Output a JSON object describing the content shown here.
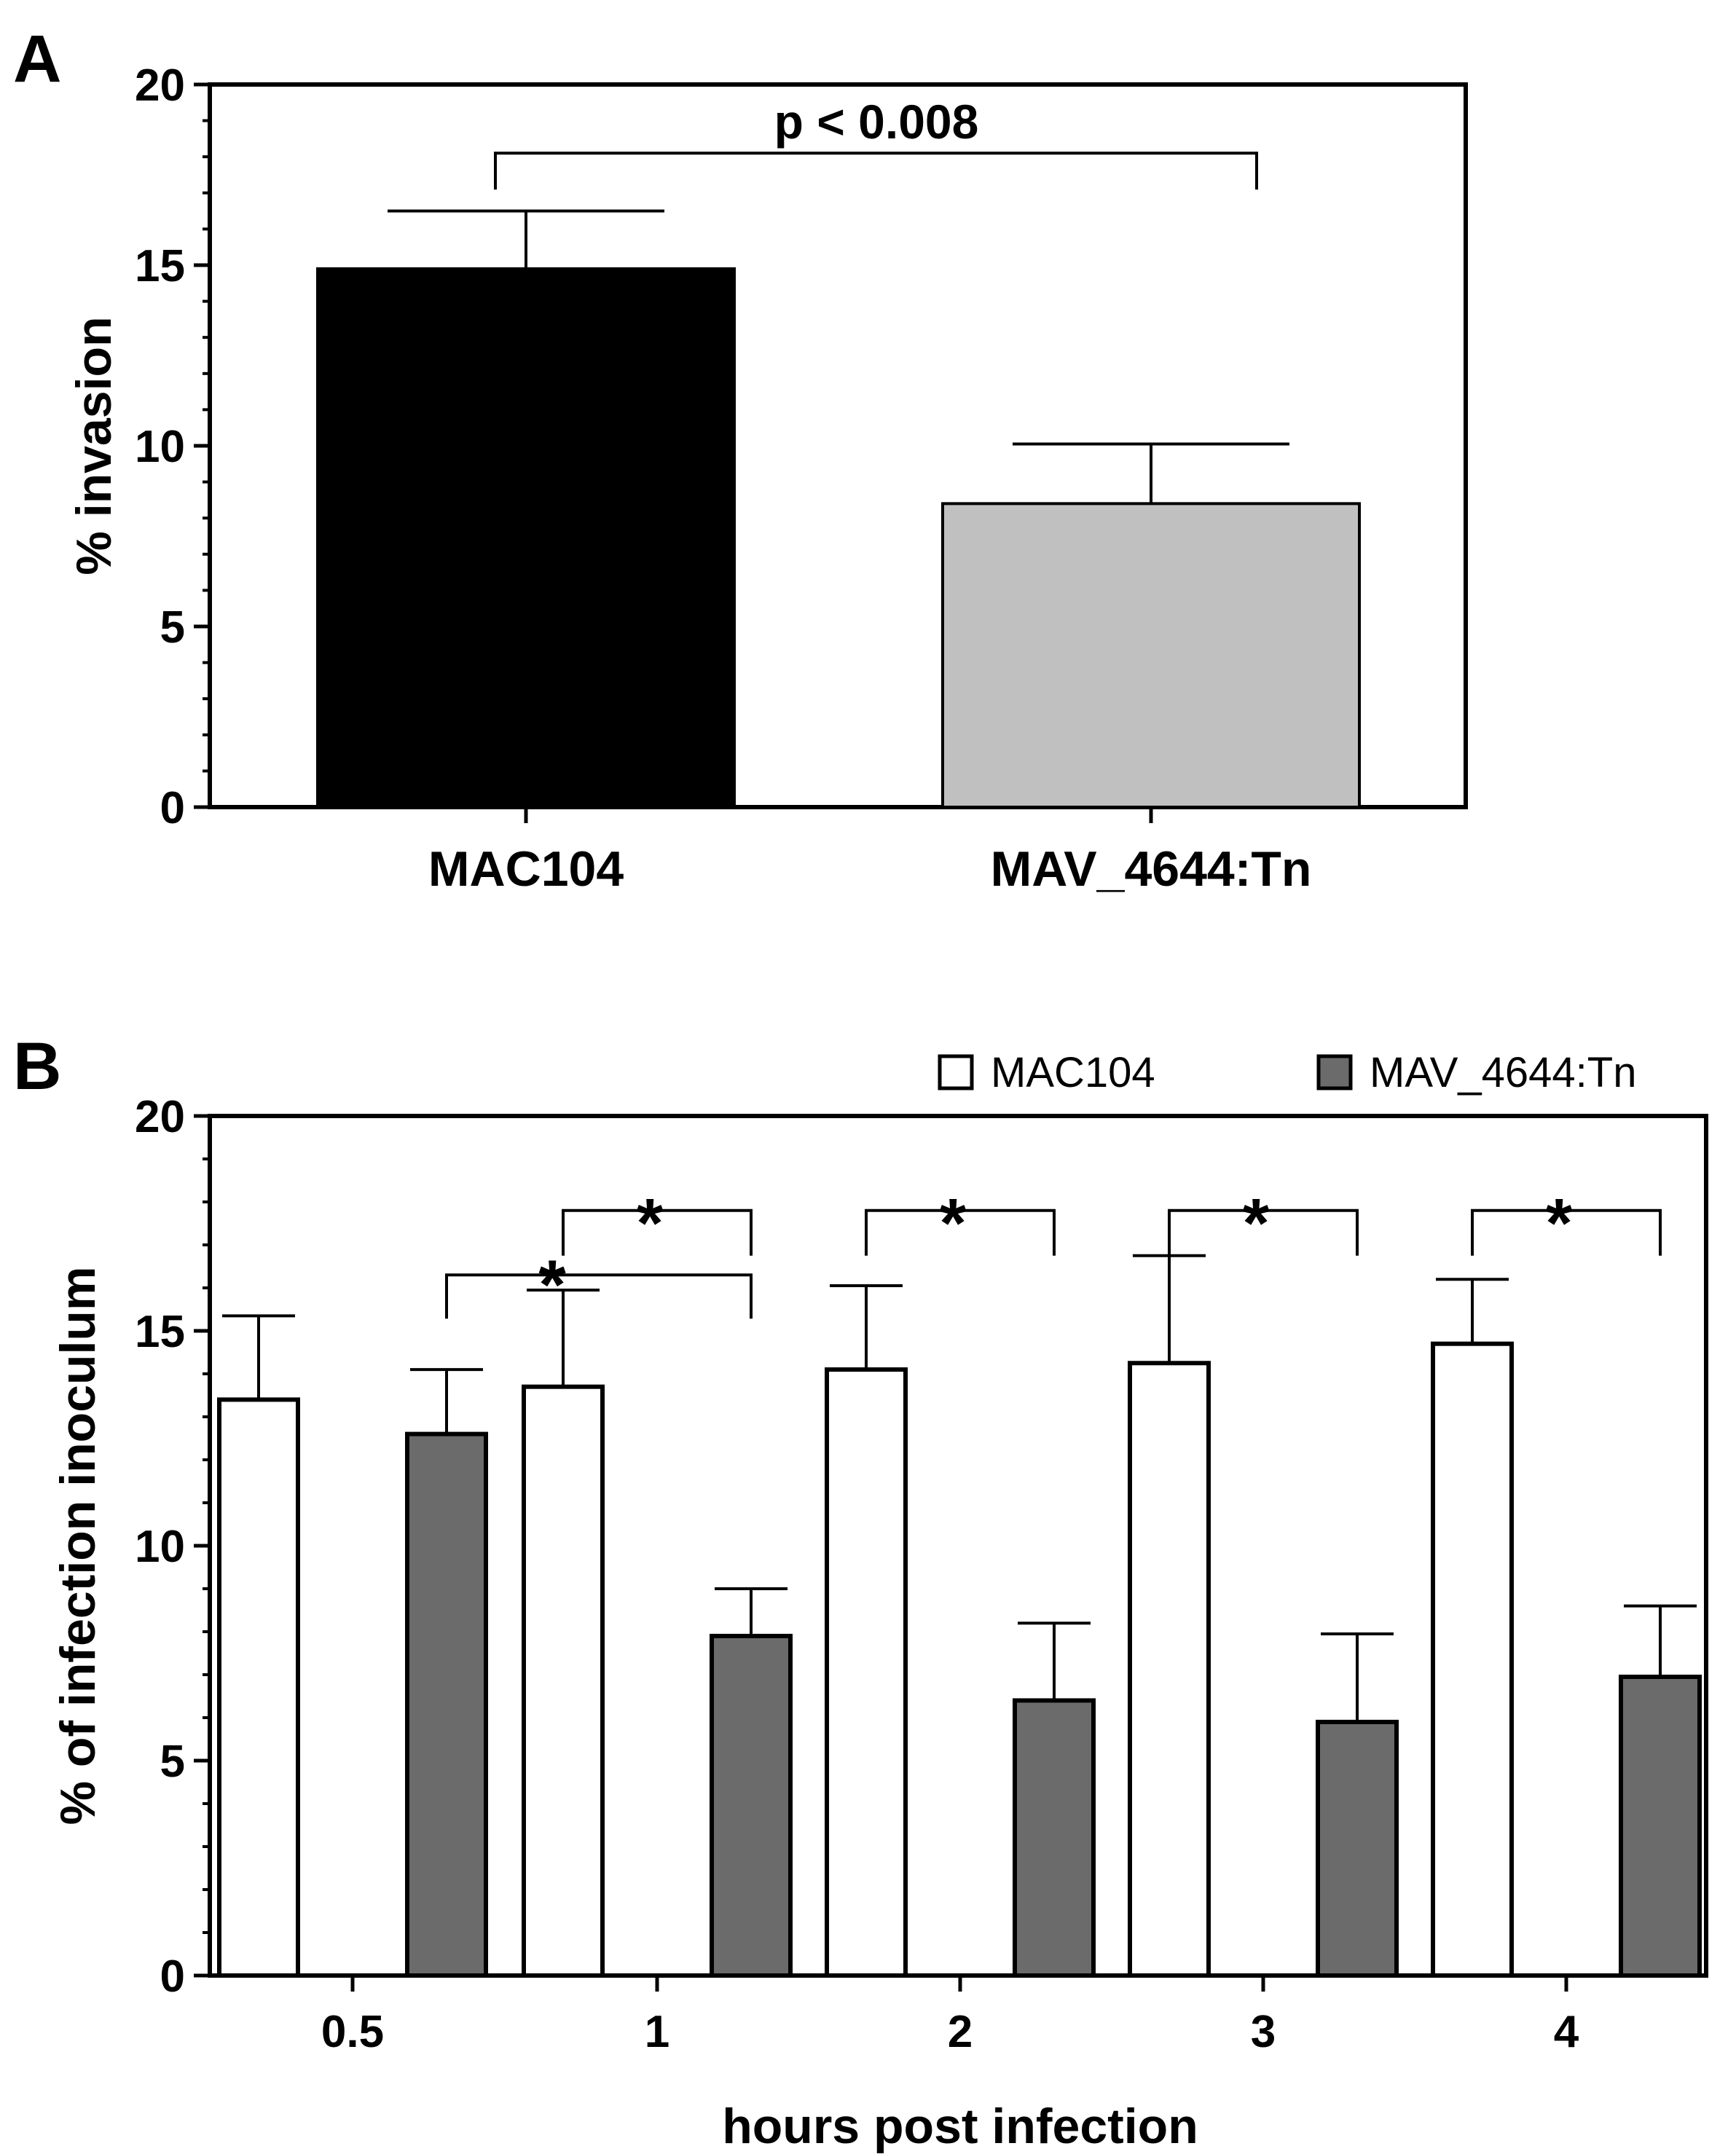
{
  "chart_data": [
    {
      "panel": "A",
      "type": "bar",
      "ylabel": "% invasion",
      "xlabel": "",
      "ylim": [
        0,
        20
      ],
      "yticks": [
        0,
        5,
        10,
        15,
        20
      ],
      "categories": [
        "MAC104",
        "MAV_4644:Tn"
      ],
      "values": [
        14.9,
        8.4
      ],
      "errors": [
        1.6,
        1.65
      ],
      "colors": [
        "#000000",
        "#c0c0c0"
      ],
      "annotations": [
        {
          "text": "p < 0.008",
          "from": "MAC104",
          "to": "MAV_4644:Tn",
          "y": 18.1
        }
      ]
    },
    {
      "panel": "B",
      "type": "bar",
      "ylabel": "% of infection inoculum",
      "xlabel": "hours post infection",
      "ylim": [
        0,
        20
      ],
      "yticks": [
        0,
        5,
        10,
        15,
        20
      ],
      "categories": [
        "0.5",
        "1",
        "2",
        "3",
        "4"
      ],
      "series": [
        {
          "name": "MAC104",
          "color": "#ffffff",
          "values": [
            13.4,
            13.7,
            14.1,
            14.25,
            14.7
          ],
          "errors": [
            1.95,
            2.25,
            1.95,
            2.5,
            1.5
          ]
        },
        {
          "name": "MAV_4644:Tn",
          "color": "#6b6b6b",
          "values": [
            12.6,
            7.9,
            6.4,
            5.9,
            6.95
          ],
          "errors": [
            1.5,
            1.1,
            1.8,
            2.05,
            1.65
          ]
        }
      ],
      "legend": {
        "position": "top-right",
        "entries": [
          "MAC104",
          "MAV_4644:Tn"
        ]
      },
      "annotations": [
        {
          "text": "*",
          "from": [
            0,
            1
          ],
          "to": [
            1,
            1
          ],
          "y": 16.3
        },
        {
          "text": "*",
          "from": [
            1,
            0
          ],
          "to": [
            1,
            1
          ],
          "y": 17.8
        },
        {
          "text": "*",
          "from": [
            2,
            0
          ],
          "to": [
            2,
            1
          ],
          "y": 17.8
        },
        {
          "text": "*",
          "from": [
            3,
            0
          ],
          "to": [
            3,
            1
          ],
          "y": 17.8
        },
        {
          "text": "*",
          "from": [
            4,
            0
          ],
          "to": [
            4,
            1
          ],
          "y": 17.8
        }
      ]
    }
  ]
}
